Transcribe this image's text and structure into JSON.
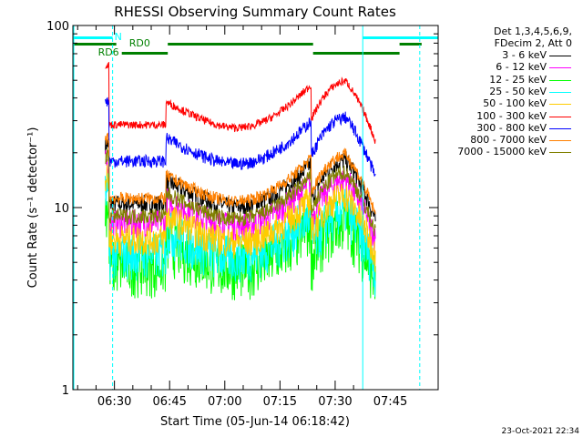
{
  "chart_data": {
    "type": "line",
    "title": "RHESSI Observing Summary Count Rates",
    "xlabel": "Start Time (05-Jun-14 06:18:42)",
    "ylabel": "Count Rate (s⁻¹ detector⁻¹)",
    "y_scale": "log",
    "ylim": [
      1,
      100
    ],
    "y_ticks": [
      "1",
      "10",
      "100"
    ],
    "xlim_minutes": [
      "06:18:42",
      "07:58:00"
    ],
    "x_ticks": [
      "06:30",
      "06:45",
      "07:00",
      "07:15",
      "07:30",
      "07:45"
    ],
    "timestamp": "23-Oct-2021 22:34",
    "detector_info": [
      "Det 1,3,4,5,6,9,",
      "FDecim 2, Att 0"
    ],
    "annotations": {
      "night": "N",
      "rd0": "RD0",
      "rd6": "RD6"
    },
    "series": [
      {
        "name": "3 - 6 keV",
        "color": "#000000",
        "level": 14
      },
      {
        "name": "6 - 12 keV",
        "color": "#ff00ff",
        "level": 11
      },
      {
        "name": "12 - 25 keV",
        "color": "#00ff00",
        "level": 6.5
      },
      {
        "name": "25 - 50 keV",
        "color": "#00ffff",
        "level": 7.5
      },
      {
        "name": "50 - 100 keV",
        "color": "#ffcc00",
        "level": 9
      },
      {
        "name": "100 - 300 keV",
        "color": "#ff0000",
        "level": 38
      },
      {
        "name": "300 - 800 keV",
        "color": "#0000ff",
        "level": 24
      },
      {
        "name": "800 - 7000 keV",
        "color": "#ff8000",
        "level": 15
      },
      {
        "name": "7000 - 15000 keV",
        "color": "#808000",
        "level": 12
      }
    ]
  }
}
